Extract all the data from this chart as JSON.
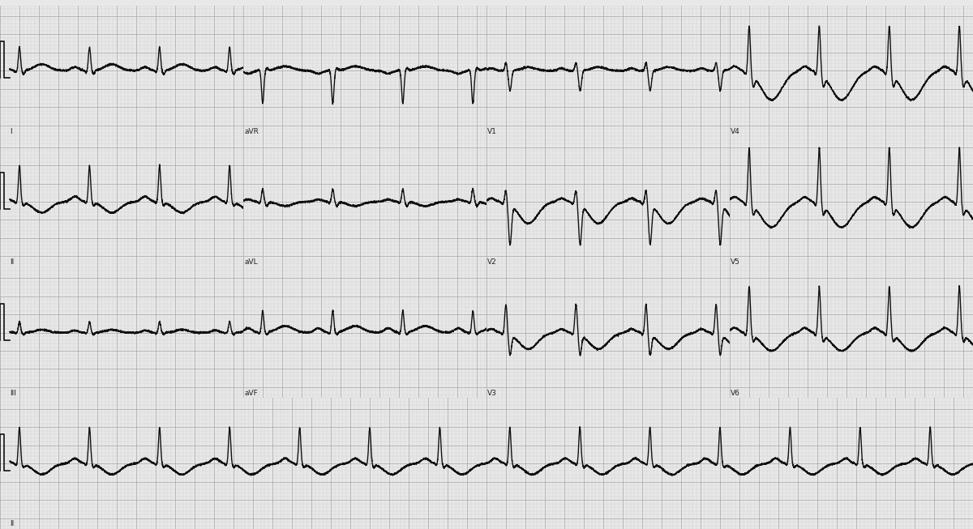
{
  "bg_color": "#e8e8e8",
  "grid_minor_color": "#c8c8c8",
  "grid_major_color": "#aaaaaa",
  "ecg_color": "#111111",
  "ecg_linewidth": 1.0,
  "fig_width": 12.0,
  "fig_height": 6.53,
  "dpi": 100,
  "lead_labels": [
    [
      "I",
      "aVR",
      "V1",
      "V4"
    ],
    [
      "II",
      "aVL",
      "V2",
      "V5"
    ],
    [
      "III",
      "aVF",
      "V3",
      "V6"
    ],
    [
      "II",
      "",
      "",
      ""
    ]
  ],
  "leads": [
    [
      "I",
      "aVR",
      "V1",
      "V4"
    ],
    [
      "II",
      "aVL",
      "V2",
      "V5"
    ],
    [
      "III",
      "aVF",
      "V3",
      "V6"
    ],
    [
      "II",
      null,
      null,
      null
    ]
  ],
  "beat_period": 0.72,
  "fs": 1000,
  "duration_short": 2.5,
  "duration_long": 10.0,
  "ylim": [
    -1.8,
    1.8
  ],
  "label_fontsize": 6.5
}
